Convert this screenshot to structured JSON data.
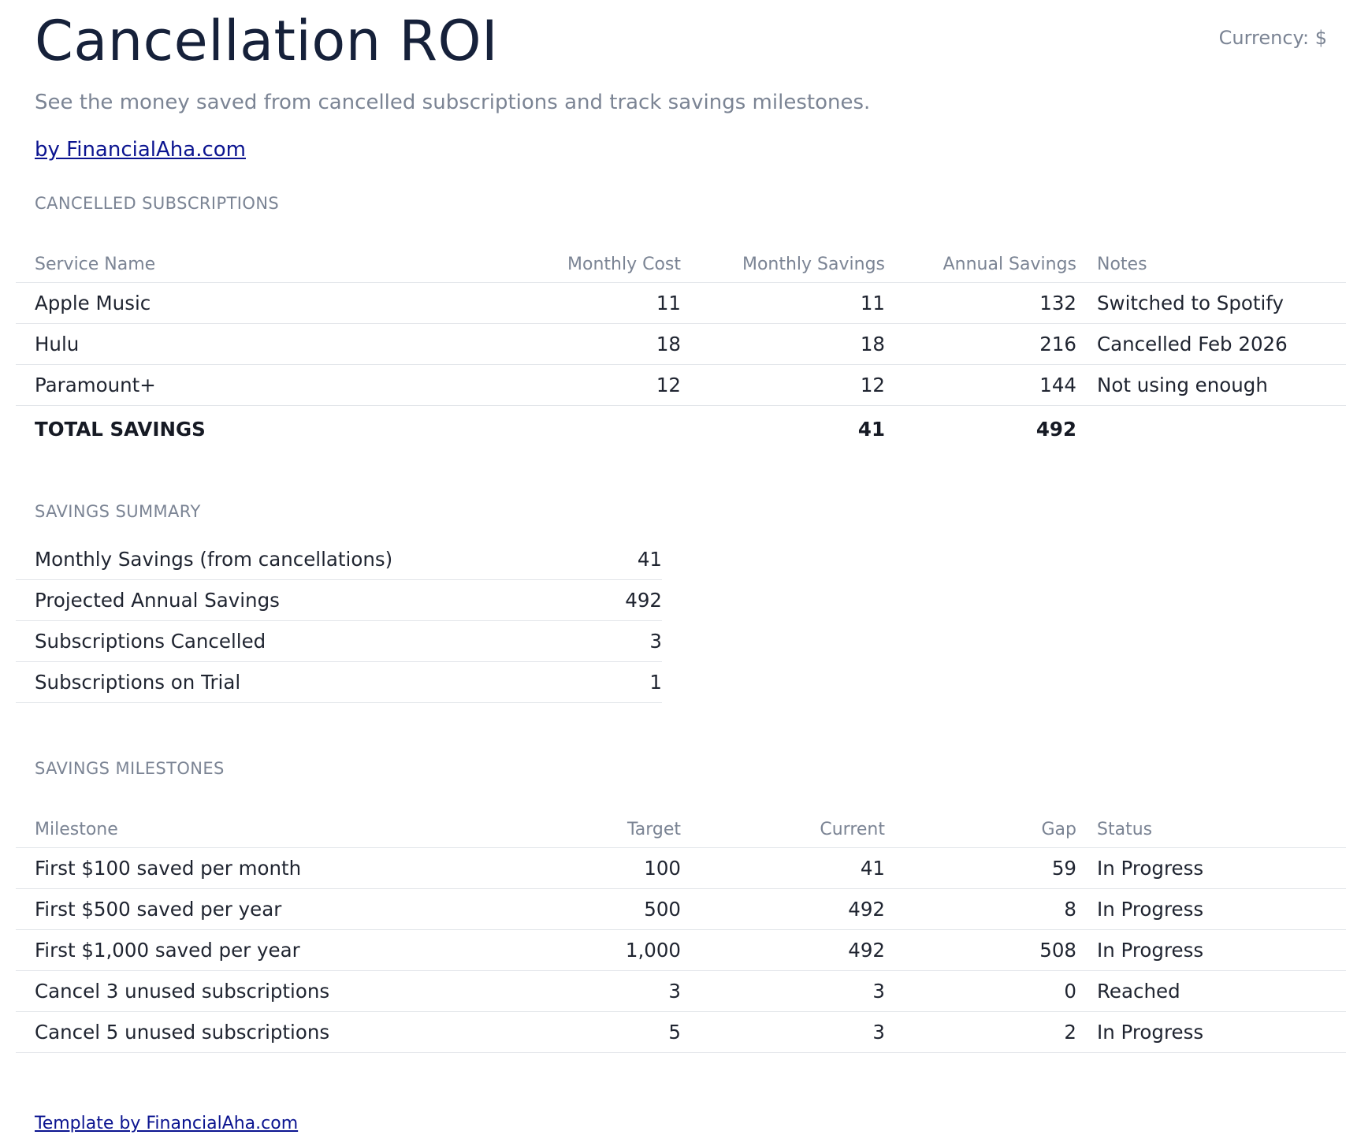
{
  "header": {
    "title": "Cancellation ROI",
    "currency": "Currency: $",
    "subtitle": "See the money saved from cancelled subscriptions and track savings milestones.",
    "by_link": "by FinancialAha.com"
  },
  "cancelled": {
    "section_label": "CANCELLED SUBSCRIPTIONS",
    "columns": [
      "Service Name",
      "Monthly Cost",
      "Monthly Savings",
      "Annual Savings",
      "Notes"
    ],
    "rows": [
      {
        "service": "Apple Music",
        "monthly_cost": "11",
        "monthly_savings": "11",
        "annual_savings": "132",
        "notes": "Switched to Spotify"
      },
      {
        "service": "Hulu",
        "monthly_cost": "18",
        "monthly_savings": "18",
        "annual_savings": "216",
        "notes": "Cancelled Feb 2026"
      },
      {
        "service": "Paramount+",
        "monthly_cost": "12",
        "monthly_savings": "12",
        "annual_savings": "144",
        "notes": "Not using enough"
      }
    ],
    "total": {
      "label": "TOTAL SAVINGS",
      "monthly_savings": "41",
      "annual_savings": "492"
    }
  },
  "summary": {
    "section_label": "SAVINGS SUMMARY",
    "rows": [
      {
        "label": "Monthly Savings (from cancellations)",
        "value": "41"
      },
      {
        "label": "Projected Annual Savings",
        "value": "492"
      },
      {
        "label": "Subscriptions Cancelled",
        "value": "3"
      },
      {
        "label": "Subscriptions on Trial",
        "value": "1"
      }
    ]
  },
  "milestones": {
    "section_label": "SAVINGS MILESTONES",
    "columns": [
      "Milestone",
      "Target",
      "Current",
      "Gap",
      "Status"
    ],
    "rows": [
      {
        "milestone": "First $100 saved per month",
        "target": "100",
        "current": "41",
        "gap": "59",
        "status": "In Progress"
      },
      {
        "milestone": "First $500 saved per year",
        "target": "500",
        "current": "492",
        "gap": "8",
        "status": "In Progress"
      },
      {
        "milestone": "First $1,000 saved per year",
        "target": "1,000",
        "current": "492",
        "gap": "508",
        "status": "In Progress"
      },
      {
        "milestone": "Cancel 3 unused subscriptions",
        "target": "3",
        "current": "3",
        "gap": "0",
        "status": "Reached"
      },
      {
        "milestone": "Cancel 5 unused subscriptions",
        "target": "5",
        "current": "3",
        "gap": "2",
        "status": "In Progress"
      }
    ]
  },
  "footer": {
    "link": "Template by FinancialAha.com"
  },
  "colors": {
    "title": "#16213a",
    "muted": "#7b8494",
    "link": "#0b1490",
    "divider": "#e3e6ea"
  }
}
